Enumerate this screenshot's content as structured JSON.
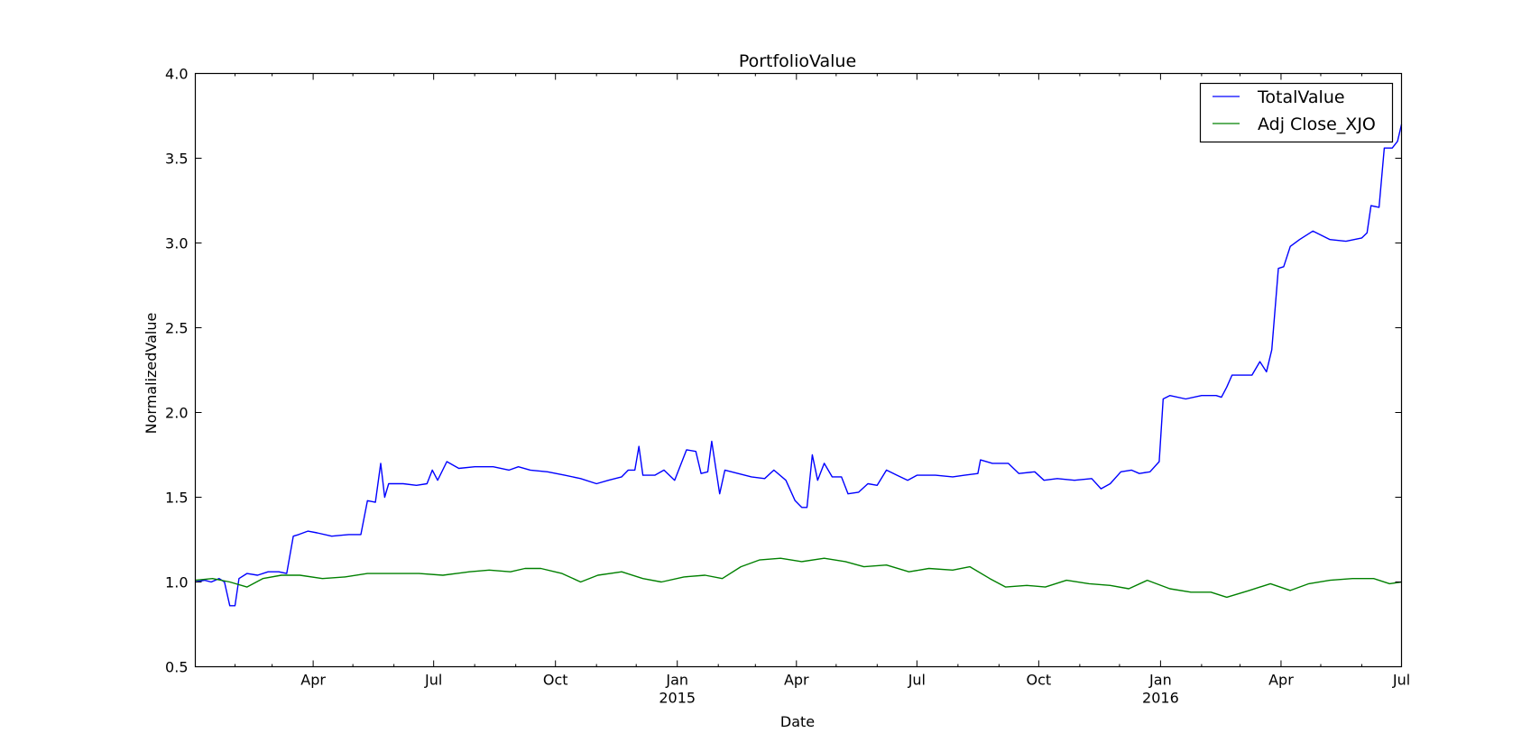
{
  "chart_data": {
    "type": "line",
    "title": "PortfolioValue",
    "xlabel": "Date",
    "ylabel": "NormalizedValue",
    "xlim": [
      "2014-01-02",
      "2016-07-01"
    ],
    "ylim": [
      0.5,
      4.0
    ],
    "grid": false,
    "legend_position": "top-right",
    "y_ticks": [
      "0.5",
      "1.0",
      "1.5",
      "2.0",
      "2.5",
      "3.0",
      "3.5",
      "4.0"
    ],
    "x_ticks": [
      {
        "date": "2014-04-01",
        "label": "Apr",
        "sublabel": ""
      },
      {
        "date": "2014-07-01",
        "label": "Jul",
        "sublabel": ""
      },
      {
        "date": "2014-10-01",
        "label": "Oct",
        "sublabel": ""
      },
      {
        "date": "2015-01-01",
        "label": "Jan",
        "sublabel": "2015"
      },
      {
        "date": "2015-04-01",
        "label": "Apr",
        "sublabel": ""
      },
      {
        "date": "2015-07-01",
        "label": "Jul",
        "sublabel": ""
      },
      {
        "date": "2015-10-01",
        "label": "Oct",
        "sublabel": ""
      },
      {
        "date": "2016-01-01",
        "label": "Jan",
        "sublabel": "2016"
      },
      {
        "date": "2016-04-01",
        "label": "Apr",
        "sublabel": ""
      },
      {
        "date": "2016-07-01",
        "label": "Jul",
        "sublabel": ""
      }
    ],
    "series": [
      {
        "name": "TotalValue",
        "color": "#0000ff",
        "points": [
          [
            "2014-01-02",
            1.0
          ],
          [
            "2014-01-09",
            1.01
          ],
          [
            "2014-01-14",
            1.0
          ],
          [
            "2014-01-20",
            1.02
          ],
          [
            "2014-01-24",
            1.0
          ],
          [
            "2014-01-28",
            0.86
          ],
          [
            "2014-02-01",
            0.86
          ],
          [
            "2014-02-04",
            1.02
          ],
          [
            "2014-02-10",
            1.05
          ],
          [
            "2014-02-18",
            1.04
          ],
          [
            "2014-02-26",
            1.06
          ],
          [
            "2014-03-06",
            1.06
          ],
          [
            "2014-03-12",
            1.05
          ],
          [
            "2014-03-17",
            1.27
          ],
          [
            "2014-03-21",
            1.28
          ],
          [
            "2014-03-28",
            1.3
          ],
          [
            "2014-04-04",
            1.29
          ],
          [
            "2014-04-15",
            1.27
          ],
          [
            "2014-04-28",
            1.28
          ],
          [
            "2014-05-07",
            1.28
          ],
          [
            "2014-05-12",
            1.48
          ],
          [
            "2014-05-18",
            1.47
          ],
          [
            "2014-05-22",
            1.7
          ],
          [
            "2014-05-25",
            1.5
          ],
          [
            "2014-05-28",
            1.58
          ],
          [
            "2014-06-08",
            1.58
          ],
          [
            "2014-06-18",
            1.57
          ],
          [
            "2014-06-26",
            1.58
          ],
          [
            "2014-06-30",
            1.66
          ],
          [
            "2014-07-04",
            1.6
          ],
          [
            "2014-07-11",
            1.71
          ],
          [
            "2014-07-20",
            1.67
          ],
          [
            "2014-08-01",
            1.68
          ],
          [
            "2014-08-15",
            1.68
          ],
          [
            "2014-08-27",
            1.66
          ],
          [
            "2014-09-03",
            1.68
          ],
          [
            "2014-09-12",
            1.66
          ],
          [
            "2014-09-25",
            1.65
          ],
          [
            "2014-10-08",
            1.63
          ],
          [
            "2014-10-20",
            1.61
          ],
          [
            "2014-11-01",
            1.58
          ],
          [
            "2014-11-10",
            1.6
          ],
          [
            "2014-11-20",
            1.62
          ],
          [
            "2014-11-25",
            1.66
          ],
          [
            "2014-11-30",
            1.66
          ],
          [
            "2014-12-03",
            1.8
          ],
          [
            "2014-12-06",
            1.63
          ],
          [
            "2014-12-15",
            1.63
          ],
          [
            "2014-12-22",
            1.66
          ],
          [
            "2014-12-30",
            1.6
          ],
          [
            "2015-01-08",
            1.78
          ],
          [
            "2015-01-15",
            1.77
          ],
          [
            "2015-01-19",
            1.64
          ],
          [
            "2015-01-24",
            1.65
          ],
          [
            "2015-01-27",
            1.83
          ],
          [
            "2015-02-02",
            1.52
          ],
          [
            "2015-02-06",
            1.66
          ],
          [
            "2015-02-16",
            1.64
          ],
          [
            "2015-02-26",
            1.62
          ],
          [
            "2015-03-08",
            1.61
          ],
          [
            "2015-03-15",
            1.66
          ],
          [
            "2015-03-24",
            1.6
          ],
          [
            "2015-03-31",
            1.48
          ],
          [
            "2015-04-05",
            1.44
          ],
          [
            "2015-04-09",
            1.44
          ],
          [
            "2015-04-13",
            1.75
          ],
          [
            "2015-04-17",
            1.6
          ],
          [
            "2015-04-22",
            1.7
          ],
          [
            "2015-04-28",
            1.62
          ],
          [
            "2015-05-05",
            1.62
          ],
          [
            "2015-05-10",
            1.52
          ],
          [
            "2015-05-18",
            1.53
          ],
          [
            "2015-05-25",
            1.58
          ],
          [
            "2015-06-01",
            1.57
          ],
          [
            "2015-06-08",
            1.66
          ],
          [
            "2015-06-16",
            1.63
          ],
          [
            "2015-06-24",
            1.6
          ],
          [
            "2015-07-01",
            1.63
          ],
          [
            "2015-07-15",
            1.63
          ],
          [
            "2015-07-28",
            1.62
          ],
          [
            "2015-08-06",
            1.63
          ],
          [
            "2015-08-16",
            1.64
          ],
          [
            "2015-08-18",
            1.72
          ],
          [
            "2015-08-27",
            1.7
          ],
          [
            "2015-09-08",
            1.7
          ],
          [
            "2015-09-16",
            1.64
          ],
          [
            "2015-09-28",
            1.65
          ],
          [
            "2015-10-05",
            1.6
          ],
          [
            "2015-10-15",
            1.61
          ],
          [
            "2015-10-28",
            1.6
          ],
          [
            "2015-11-10",
            1.61
          ],
          [
            "2015-11-17",
            1.55
          ],
          [
            "2015-11-24",
            1.58
          ],
          [
            "2015-12-02",
            1.65
          ],
          [
            "2015-12-10",
            1.66
          ],
          [
            "2015-12-16",
            1.64
          ],
          [
            "2015-12-24",
            1.65
          ],
          [
            "2015-12-31",
            1.71
          ],
          [
            "2016-01-03",
            2.08
          ],
          [
            "2016-01-08",
            2.1
          ],
          [
            "2016-01-20",
            2.08
          ],
          [
            "2016-02-01",
            2.1
          ],
          [
            "2016-02-12",
            2.1
          ],
          [
            "2016-02-16",
            2.09
          ],
          [
            "2016-02-20",
            2.15
          ],
          [
            "2016-02-24",
            2.22
          ],
          [
            "2016-03-10",
            2.22
          ],
          [
            "2016-03-16",
            2.3
          ],
          [
            "2016-03-21",
            2.24
          ],
          [
            "2016-03-25",
            2.37
          ],
          [
            "2016-03-30",
            2.85
          ],
          [
            "2016-04-03",
            2.86
          ],
          [
            "2016-04-08",
            2.98
          ],
          [
            "2016-04-15",
            3.02
          ],
          [
            "2016-04-25",
            3.07
          ],
          [
            "2016-05-08",
            3.02
          ],
          [
            "2016-05-20",
            3.01
          ],
          [
            "2016-06-01",
            3.03
          ],
          [
            "2016-06-05",
            3.06
          ],
          [
            "2016-06-08",
            3.22
          ],
          [
            "2016-06-14",
            3.21
          ],
          [
            "2016-06-18",
            3.56
          ],
          [
            "2016-06-24",
            3.56
          ],
          [
            "2016-06-28",
            3.6
          ],
          [
            "2016-07-01",
            3.7
          ]
        ]
      },
      {
        "name": "Adj Close_XJO",
        "color": "#008000",
        "points": [
          [
            "2014-01-02",
            1.01
          ],
          [
            "2014-01-15",
            1.02
          ],
          [
            "2014-01-28",
            1.0
          ],
          [
            "2014-02-10",
            0.97
          ],
          [
            "2014-02-22",
            1.02
          ],
          [
            "2014-03-08",
            1.04
          ],
          [
            "2014-03-22",
            1.04
          ],
          [
            "2014-04-08",
            1.02
          ],
          [
            "2014-04-25",
            1.03
          ],
          [
            "2014-05-12",
            1.05
          ],
          [
            "2014-06-01",
            1.05
          ],
          [
            "2014-06-20",
            1.05
          ],
          [
            "2014-07-08",
            1.04
          ],
          [
            "2014-07-28",
            1.06
          ],
          [
            "2014-08-12",
            1.07
          ],
          [
            "2014-08-28",
            1.06
          ],
          [
            "2014-09-08",
            1.08
          ],
          [
            "2014-09-20",
            1.08
          ],
          [
            "2014-10-06",
            1.05
          ],
          [
            "2014-10-20",
            1.0
          ],
          [
            "2014-11-02",
            1.04
          ],
          [
            "2014-11-20",
            1.06
          ],
          [
            "2014-12-06",
            1.02
          ],
          [
            "2014-12-20",
            1.0
          ],
          [
            "2015-01-06",
            1.03
          ],
          [
            "2015-01-22",
            1.04
          ],
          [
            "2015-02-04",
            1.02
          ],
          [
            "2015-02-18",
            1.09
          ],
          [
            "2015-03-04",
            1.13
          ],
          [
            "2015-03-20",
            1.14
          ],
          [
            "2015-04-05",
            1.12
          ],
          [
            "2015-04-22",
            1.14
          ],
          [
            "2015-05-08",
            1.12
          ],
          [
            "2015-05-22",
            1.09
          ],
          [
            "2015-06-08",
            1.1
          ],
          [
            "2015-06-25",
            1.06
          ],
          [
            "2015-07-10",
            1.08
          ],
          [
            "2015-07-28",
            1.07
          ],
          [
            "2015-08-10",
            1.09
          ],
          [
            "2015-08-25",
            1.02
          ],
          [
            "2015-09-06",
            0.97
          ],
          [
            "2015-09-22",
            0.98
          ],
          [
            "2015-10-06",
            0.97
          ],
          [
            "2015-10-22",
            1.01
          ],
          [
            "2015-11-08",
            0.99
          ],
          [
            "2015-11-24",
            0.98
          ],
          [
            "2015-12-08",
            0.96
          ],
          [
            "2015-12-22",
            1.01
          ],
          [
            "2016-01-08",
            0.96
          ],
          [
            "2016-01-24",
            0.94
          ],
          [
            "2016-02-08",
            0.94
          ],
          [
            "2016-02-20",
            0.91
          ],
          [
            "2016-03-08",
            0.95
          ],
          [
            "2016-03-24",
            0.99
          ],
          [
            "2016-04-08",
            0.95
          ],
          [
            "2016-04-22",
            0.99
          ],
          [
            "2016-05-08",
            1.01
          ],
          [
            "2016-05-25",
            1.02
          ],
          [
            "2016-06-10",
            1.02
          ],
          [
            "2016-06-22",
            0.99
          ],
          [
            "2016-07-01",
            1.0
          ]
        ]
      }
    ]
  }
}
